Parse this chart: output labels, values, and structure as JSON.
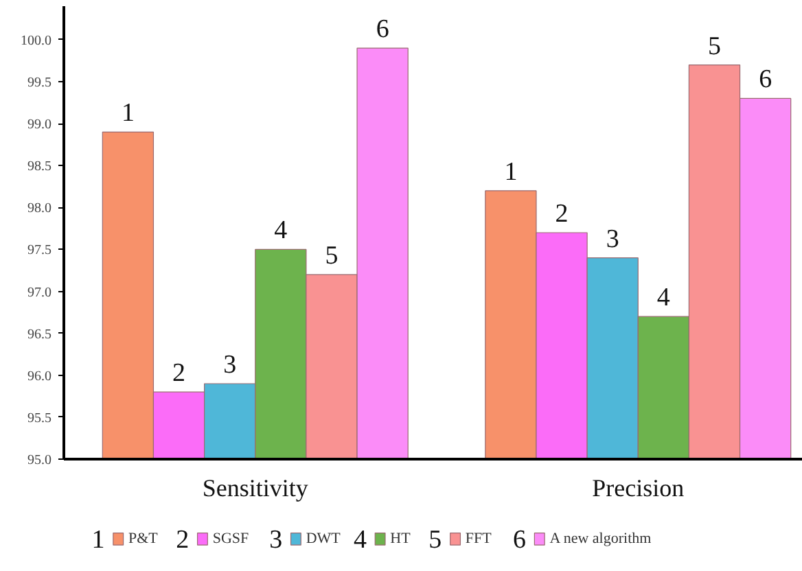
{
  "chart_data": {
    "type": "bar",
    "categories": [
      "Sensitivity",
      "Precision"
    ],
    "series": [
      {
        "name": "P&T",
        "color": "#f7916a",
        "values": [
          98.9,
          98.2
        ]
      },
      {
        "name": "SGSF",
        "color": "#fb6cf8",
        "values": [
          95.8,
          97.7
        ]
      },
      {
        "name": "DWT",
        "color": "#4fb7d8",
        "values": [
          95.9,
          97.4
        ]
      },
      {
        "name": "HT",
        "color": "#6db34d",
        "values": [
          97.5,
          96.7
        ]
      },
      {
        "name": "FFT",
        "color": "#f99292",
        "values": [
          97.2,
          99.7
        ]
      },
      {
        "name": "A new algorithm",
        "color": "#fb8cf8",
        "values": [
          99.9,
          99.3
        ]
      }
    ],
    "annotations": [
      "1",
      "2",
      "3",
      "4",
      "5",
      "6",
      "1",
      "2",
      "3",
      "4",
      "5",
      "6"
    ],
    "ylim": [
      95.0,
      100.4
    ],
    "yticks": [
      {
        "value": 95,
        "label": "95.0"
      },
      {
        "value": 95.5,
        "label": "95.5"
      },
      {
        "value": 96,
        "label": "96.0"
      },
      {
        "value": 96.5,
        "label": "96.5"
      },
      {
        "value": 97,
        "label": "97.0"
      },
      {
        "value": 97.5,
        "label": "97.5"
      },
      {
        "value": 98,
        "label": "98.0"
      },
      {
        "value": 98.5,
        "label": "98.5"
      },
      {
        "value": 99,
        "label": "99.0"
      },
      {
        "value": 99.5,
        "label": "99.5"
      },
      {
        "value": 100,
        "label": "100.0"
      }
    ],
    "grid": false,
    "legend": "bottom"
  }
}
